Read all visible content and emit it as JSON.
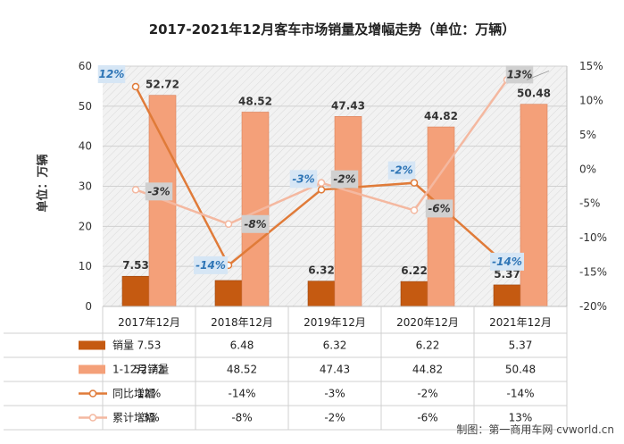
{
  "chart_data": {
    "type": "bar",
    "title": "2017-2021年12月客车市场销量及增幅走势（单位：万辆）",
    "ylabel": "单位：万辆",
    "ylim": [
      0,
      60
    ],
    "y_ticks": [
      "0",
      "10",
      "20",
      "30",
      "40",
      "50",
      "60"
    ],
    "y2lim": [
      -20,
      15
    ],
    "y2_ticks": [
      "-20%",
      "-15%",
      "-10%",
      "-5%",
      "0%",
      "5%",
      "10%",
      "15%"
    ],
    "categories": [
      "2017年12月",
      "2018年12月",
      "2019年12月",
      "2020年12月",
      "2021年12月"
    ],
    "series": [
      {
        "name": "销量",
        "kind": "bar",
        "color": "#C55A11",
        "values": [
          7.53,
          6.48,
          6.32,
          6.22,
          5.37
        ],
        "labels": [
          "7.53",
          "6.48",
          "6.32",
          "6.22",
          "5.37"
        ],
        "shown_labels": [
          true,
          false,
          true,
          true,
          true
        ]
      },
      {
        "name": "1-12月销量",
        "kind": "bar",
        "color": "#F4A079",
        "values": [
          52.72,
          48.52,
          47.43,
          44.82,
          50.48
        ],
        "labels": [
          "52.72",
          "48.52",
          "47.43",
          "44.82",
          "50.48"
        ],
        "shown_labels": [
          true,
          true,
          true,
          true,
          true
        ]
      },
      {
        "name": "同比增幅",
        "kind": "line",
        "axis": "right",
        "color": "#E07B39",
        "values": [
          12,
          -14,
          -3,
          -2,
          -14
        ],
        "labels": [
          "12%",
          "-14%",
          "-3%",
          "-2%",
          "-14%"
        ]
      },
      {
        "name": "累计增幅",
        "kind": "line",
        "axis": "right",
        "color": "#F4B8A0",
        "values": [
          -3,
          -8,
          -2,
          -6,
          13
        ],
        "labels": [
          "-3%",
          "-8%",
          "-2%",
          "-6%",
          "13%"
        ]
      }
    ],
    "table_rows": [
      {
        "name": "销量",
        "cells": [
          "7.53",
          "6.48",
          "6.32",
          "6.22",
          "5.37"
        ]
      },
      {
        "name": "1-12月销量",
        "cells": [
          "52.72",
          "48.52",
          "47.43",
          "44.82",
          "50.48"
        ]
      },
      {
        "name": "同比增幅",
        "cells": [
          "12%",
          "-14%",
          "-3%",
          "-2%",
          "-14%"
        ]
      },
      {
        "name": "累计增幅",
        "cells": [
          "-3%",
          "-8%",
          "-2%",
          "-6%",
          "13%"
        ]
      }
    ],
    "grid": true,
    "legend": "table-left"
  },
  "source_note": "制图：第一商用车网 cvworld.cn",
  "colors": {
    "label_box_yoy": "#D6E6F5",
    "label_box_cum": "#D0D0D0",
    "yoy_text": "#2E75B6",
    "cum_text": "#333333"
  }
}
